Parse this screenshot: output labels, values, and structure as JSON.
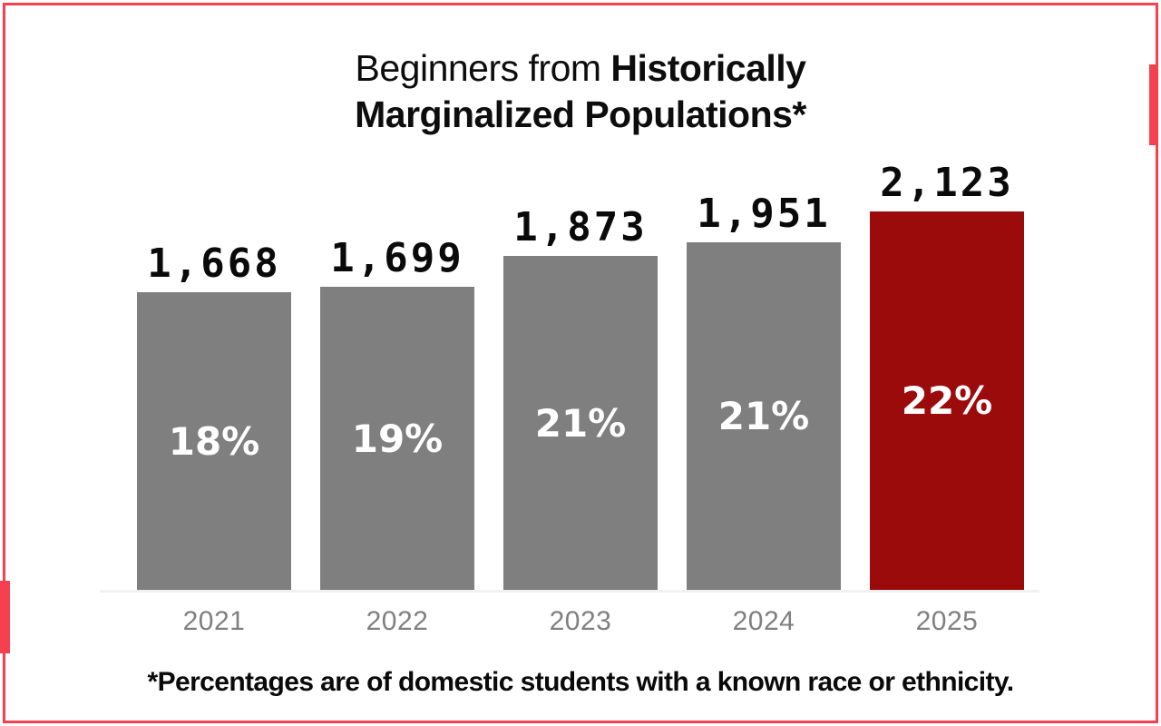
{
  "title": {
    "line1_regular": "Beginners from ",
    "line1_bold": "Historically",
    "line2_bold": "Marginalized Populations*"
  },
  "footnote": "*Percentages are of domestic students with a known race or ethnicity.",
  "chart_data": {
    "type": "bar",
    "title": "Beginners from Historically Marginalized Populations*",
    "categories": [
      "2021",
      "2022",
      "2023",
      "2024",
      "2025"
    ],
    "values": [
      1668,
      1699,
      1873,
      1951,
      2123
    ],
    "value_labels": [
      "1,668",
      "1,699",
      "1,873",
      "1,951",
      "2,123"
    ],
    "percent_labels": [
      "18%",
      "19%",
      "21%",
      "21%",
      "22%"
    ],
    "highlight_index": 4,
    "ylim": [
      0,
      2123
    ],
    "xlabel": "",
    "ylabel": "",
    "grid": false,
    "legend": false,
    "annotation": "Percentages shown inside bars; counts above bars"
  },
  "colors": {
    "bar_gray": "#7F7F7F",
    "bar_highlight_red": "#9C0B0C",
    "frame_red": "#F5414F",
    "year_label_gray": "#808080",
    "baseline_gray": "#F1F1F1",
    "percent_text": "#FFFFFF",
    "text_black": "#0A0A0A"
  }
}
